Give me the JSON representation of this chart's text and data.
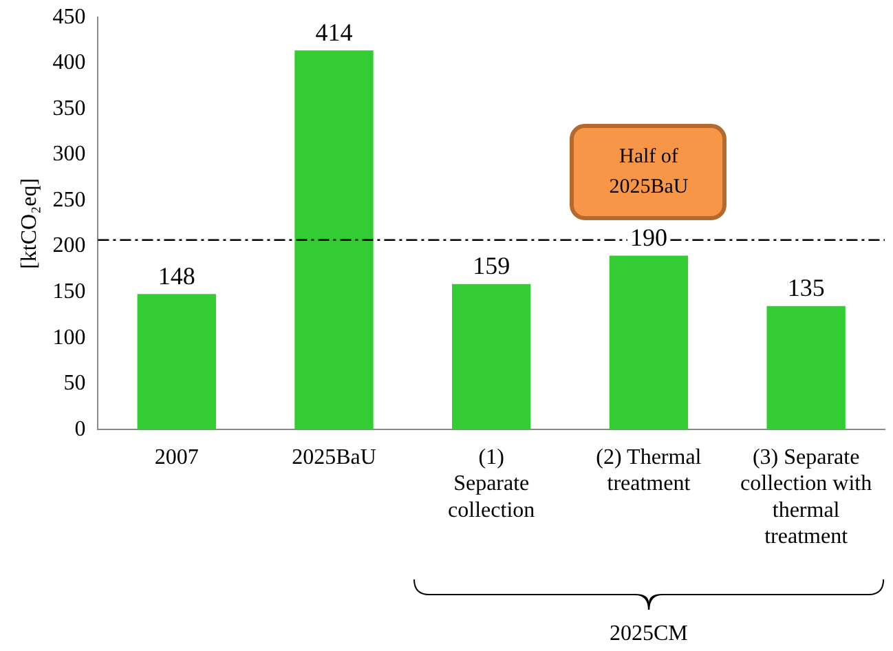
{
  "chart_data": {
    "type": "bar",
    "ylabel": "[ktCO₂eq]",
    "categories": [
      "2007",
      "2025BaU",
      "(1)\nSeparate\ncollection",
      "(2) Thermal\ntreatment",
      "(3) Separate\ncollection with\nthermal\ntreatment"
    ],
    "values": [
      148,
      414,
      159,
      190,
      135
    ],
    "color": "#33cc33",
    "ylim": [
      0,
      450
    ],
    "yticks": [
      0,
      50,
      100,
      150,
      200,
      250,
      300,
      350,
      400,
      450
    ],
    "data_labels": true,
    "grid": false,
    "legend": false,
    "ref_lines": [
      {
        "axis": "y",
        "value": 207,
        "label": "Half of\n2025BaU",
        "color": "#000000",
        "line_style": "dashdot"
      }
    ],
    "annotations": [
      "2025CM"
    ]
  }
}
